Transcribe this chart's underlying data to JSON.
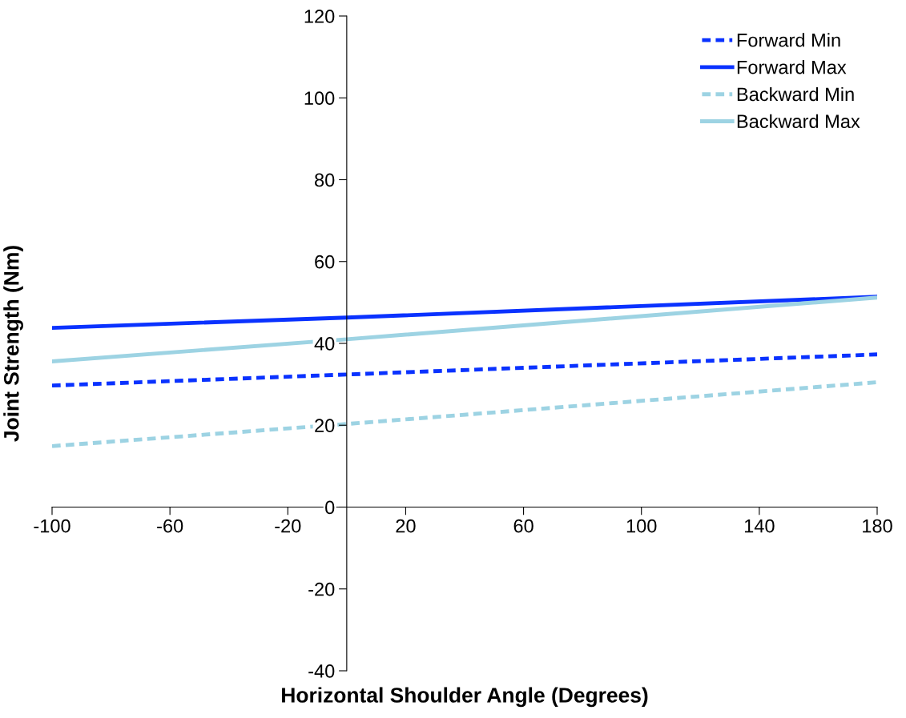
{
  "chart_data": {
    "type": "line",
    "xlabel": "Horizontal Shoulder Angle (Degrees)",
    "ylabel": "Joint Strength (Nm)",
    "xlim": [
      -100,
      180
    ],
    "xticks": [
      -100,
      -60,
      -20,
      20,
      60,
      100,
      140,
      180
    ],
    "ylim": [
      -40,
      120
    ],
    "yticks": [
      -40,
      -20,
      0,
      20,
      40,
      60,
      80,
      100,
      120
    ],
    "grid": false,
    "legend": "top right",
    "marker": "none",
    "series": [
      {
        "name": "Forward Min",
        "color": "#0a32ff",
        "line_style": "dashed",
        "x": [
          -100,
          0,
          180
        ],
        "values": [
          29.7,
          32.4,
          37.3
        ]
      },
      {
        "name": "Forward Max",
        "color": "#0a32ff",
        "line_style": "solid",
        "x": [
          -100,
          0,
          180
        ],
        "values": [
          43.8,
          46.3,
          51.4
        ]
      },
      {
        "name": "Backward Min",
        "color": "#9dd3e3",
        "line_style": "dashed",
        "x": [
          -100,
          0,
          180
        ],
        "values": [
          14.9,
          20.3,
          30.5
        ]
      },
      {
        "name": "Backward Max",
        "color": "#9dd3e3",
        "line_style": "solid",
        "x": [
          -100,
          0,
          180
        ],
        "values": [
          35.6,
          41.0,
          51.2
        ]
      }
    ]
  }
}
